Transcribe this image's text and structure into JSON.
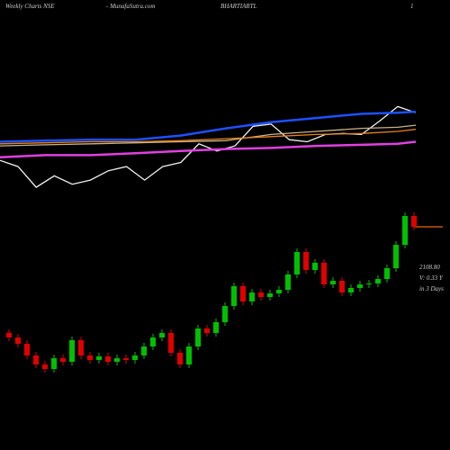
{
  "header": {
    "left": "Weekly Charts NSE",
    "site": "- MunafaSutra.com",
    "symbol": "BHARTIARTL",
    "right": "1"
  },
  "chart_data": [
    {
      "type": "candlestick",
      "ylim": [
        869,
        3369
      ],
      "up_color": "#00c000",
      "down_color": "#e00000",
      "level_color": "#e86a10",
      "annotations": [
        "2108.80",
        "V: 0.33 Y",
        "in 3 Days"
      ],
      "open": [
        1520,
        1494,
        1459,
        1394,
        1344,
        1319,
        1379,
        1359,
        1479,
        1394,
        1369,
        1389,
        1359,
        1379,
        1369,
        1394,
        1444,
        1494,
        1519,
        1409,
        1344,
        1444,
        1544,
        1519,
        1579,
        1669,
        1779,
        1694,
        1744,
        1719,
        1739,
        1759,
        1844,
        1969,
        1869,
        1909,
        1789,
        1809,
        1744,
        1769,
        1789,
        1794,
        1819,
        1879,
        2009,
        2169
      ],
      "high": [
        1540,
        1514,
        1479,
        1414,
        1364,
        1399,
        1399,
        1499,
        1499,
        1414,
        1409,
        1409,
        1399,
        1399,
        1414,
        1464,
        1514,
        1539,
        1539,
        1429,
        1464,
        1564,
        1564,
        1599,
        1689,
        1799,
        1799,
        1764,
        1764,
        1759,
        1779,
        1864,
        1989,
        1989,
        1929,
        1929,
        1829,
        1829,
        1789,
        1809,
        1814,
        1839,
        1899,
        2029,
        2189,
        2189
      ],
      "low": [
        1474,
        1439,
        1374,
        1324,
        1299,
        1299,
        1339,
        1339,
        1374,
        1349,
        1349,
        1339,
        1339,
        1349,
        1349,
        1374,
        1424,
        1474,
        1389,
        1324,
        1324,
        1424,
        1499,
        1499,
        1559,
        1649,
        1674,
        1674,
        1699,
        1699,
        1719,
        1739,
        1824,
        1849,
        1849,
        1769,
        1769,
        1724,
        1724,
        1749,
        1769,
        1774,
        1799,
        1859,
        1989,
        2089
      ],
      "close": [
        1494,
        1459,
        1394,
        1344,
        1319,
        1379,
        1359,
        1479,
        1394,
        1369,
        1389,
        1359,
        1379,
        1369,
        1394,
        1444,
        1494,
        1519,
        1409,
        1344,
        1444,
        1544,
        1519,
        1579,
        1669,
        1779,
        1694,
        1744,
        1719,
        1739,
        1759,
        1844,
        1969,
        1869,
        1909,
        1789,
        1809,
        1744,
        1769,
        1789,
        1794,
        1819,
        1879,
        2009,
        2169,
        2109
      ]
    },
    {
      "type": "line",
      "xlim": [
        0,
        46
      ],
      "ylim": [
        0,
        100
      ],
      "series": [
        {
          "color": "#f0f0f0",
          "x": [
            0,
            2,
            4,
            6,
            8,
            10,
            12,
            14,
            16,
            18,
            20,
            22,
            24,
            26,
            28,
            30,
            32,
            34,
            36,
            38,
            40,
            42,
            44,
            46
          ],
          "values": [
            32,
            26,
            6,
            17,
            9,
            13,
            22,
            26,
            13,
            26,
            30,
            48,
            41,
            46,
            65,
            67,
            52,
            50,
            57,
            58,
            57,
            70,
            84,
            78
          ]
        },
        {
          "color": "#c9b48a",
          "x": [
            0,
            5,
            10,
            15,
            20,
            25,
            30,
            35,
            40,
            44,
            46
          ],
          "values": [
            46,
            47,
            48,
            49,
            50,
            51,
            57,
            60,
            63,
            64,
            66
          ]
        },
        {
          "color": "#e8821e",
          "x": [
            0,
            5,
            10,
            15,
            20,
            25,
            30,
            35,
            40,
            44,
            46
          ],
          "values": [
            48,
            49,
            50,
            50,
            51,
            53,
            55,
            57,
            58,
            60,
            62
          ]
        },
        {
          "color": "#e040e0",
          "x": [
            0,
            5,
            10,
            15,
            20,
            25,
            30,
            35,
            40,
            44,
            46
          ],
          "values": [
            35,
            37,
            37,
            39,
            41,
            43,
            44,
            46,
            47,
            48,
            50
          ]
        },
        {
          "color": "#1e50ff",
          "x": [
            0,
            5,
            10,
            15,
            20,
            25,
            30,
            35,
            40,
            44,
            46
          ],
          "values": [
            50,
            51,
            52,
            52,
            56,
            63,
            69,
            73,
            77,
            78,
            79
          ]
        }
      ]
    }
  ]
}
